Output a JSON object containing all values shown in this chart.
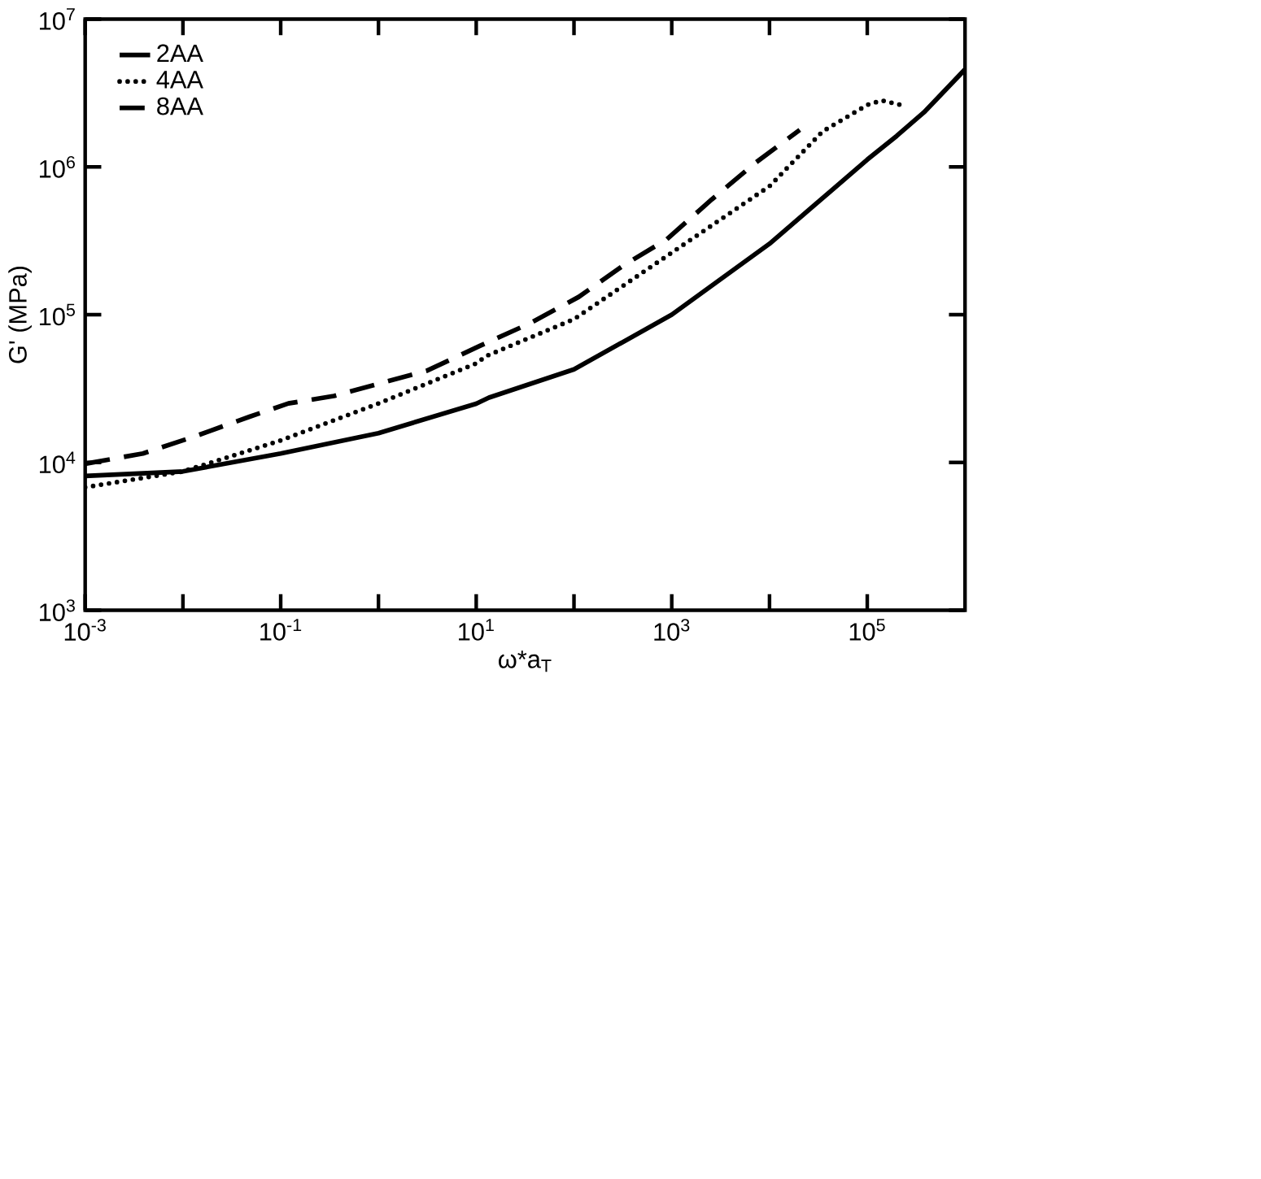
{
  "chart_data": {
    "type": "line",
    "xlabel": "ω*a$_{T}$",
    "ylabel": "G' (MPa)",
    "log": "xy",
    "grid": false,
    "legend": "top left",
    "marker": "none",
    "xlim": [
      0.001,
      1000000
    ],
    "ylim": [
      1000,
      10000000
    ],
    "xticks": [
      {
        "value": 0.001,
        "label": "10$^{-3}$"
      },
      {
        "value": 0.01,
        "label": null
      },
      {
        "value": 0.1,
        "label": "10$^{-1}$"
      },
      {
        "value": 1,
        "label": null
      },
      {
        "value": 10,
        "label": "10$^{1}$"
      },
      {
        "value": 100,
        "label": null
      },
      {
        "value": 1000,
        "label": "10$^{3}$"
      },
      {
        "value": 10000,
        "label": null
      },
      {
        "value": 100000,
        "label": "10$^{5}$"
      }
    ],
    "yticks": [
      {
        "value": 1000,
        "label": "10$^{3}$"
      },
      {
        "value": 10000,
        "label": "10$^{4}$"
      },
      {
        "value": 100000,
        "label": "10$^{5}$"
      },
      {
        "value": 1000000,
        "label": "10$^{6}$"
      },
      {
        "value": 10000000,
        "label": "10$^{7}$"
      }
    ],
    "series": [
      {
        "name": "2AA",
        "color": "#000000",
        "line_style": "solid",
        "x": [
          0.001,
          0.01,
          0.1,
          1,
          10,
          13.5,
          100,
          1000,
          10000,
          100000,
          200000,
          380000,
          1000000
        ],
        "values": [
          8100,
          8700,
          11500,
          15800,
          25000,
          27500,
          42700,
          100000,
          302000,
          1120000,
          1620000,
          2340000,
          4570000
        ]
      },
      {
        "name": "4AA",
        "color": "#000000",
        "line_style": "dotted",
        "x": [
          0.001,
          0.01,
          0.1,
          1,
          10,
          12.6,
          100,
          1000,
          10000,
          35000,
          100000,
          140000,
          220000
        ],
        "values": [
          6800,
          8700,
          14100,
          25100,
          46800,
          52500,
          93300,
          263000,
          741000,
          1740000,
          2630000,
          2820000,
          2630000
        ]
      },
      {
        "name": "8AA",
        "color": "#000000",
        "line_style": "dashed",
        "x": [
          0.001,
          0.0039,
          0.0135,
          0.048,
          0.12,
          0.35,
          1.1,
          3.1,
          11,
          35,
          112,
          316,
          890,
          2570,
          7240,
          20400
        ],
        "values": [
          9800,
          11500,
          15100,
          20400,
          25100,
          28200,
          34700,
          41700,
          61700,
          87100,
          132000,
          214000,
          324000,
          603000,
          1070000,
          1780000
        ]
      }
    ]
  }
}
